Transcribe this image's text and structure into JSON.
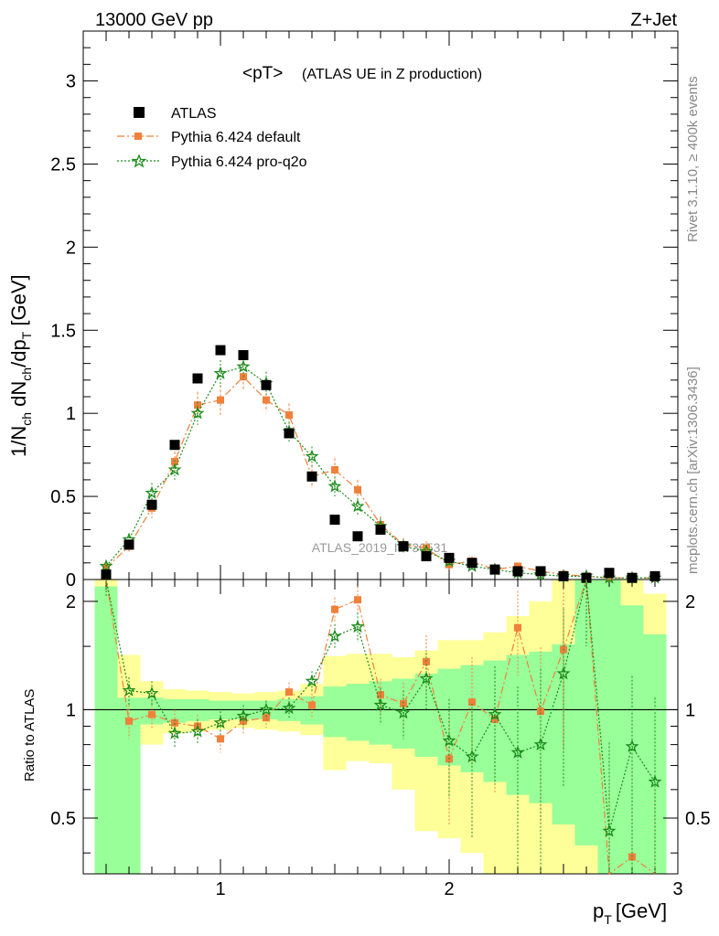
{
  "header": {
    "left": "13000 GeV pp",
    "right": "Z+Jet"
  },
  "side_labels": {
    "rivet": "Rivet 3.1.10, ≥ 400k events",
    "mcplots": "mcplots.cern.ch [arXiv:1306.3436]"
  },
  "title": {
    "main": "<pT>",
    "sub": "(ATLAS UE in Z production)"
  },
  "watermark": "ATLAS_2019_I1736531",
  "axes": {
    "main_ylabel": "1/N_ch dN_ch/dp_T [GeV]",
    "ratio_ylabel": "Ratio to ATLAS",
    "xlabel_main": "p",
    "xlabel_sub": "T",
    "xlabel_unit": "[GeV]"
  },
  "legend": [
    {
      "label": "ATLAS",
      "marker": "square",
      "color": "#000000"
    },
    {
      "label": "Pythia 6.424 default",
      "marker": "square",
      "color": "#f0803a"
    },
    {
      "label": "Pythia 6.424 pro-q2o",
      "marker": "star",
      "color": "#1a8a1a"
    }
  ],
  "chart_data": {
    "type": "scatter",
    "xlim": [
      0.4,
      3.0
    ],
    "ylim": [
      0,
      3.3
    ],
    "ratio_ylim": [
      0.35,
      2.3
    ],
    "x_ticks": [
      1,
      2,
      3
    ],
    "x_tick_labels": [
      "1",
      "2",
      "3"
    ],
    "y_ticks": [
      0,
      0.5,
      1,
      1.5,
      2,
      2.5,
      3
    ],
    "y_tick_labels": [
      "0",
      "0.5",
      "1",
      "1.5",
      "2",
      "2.5",
      "3"
    ],
    "ratio_ticks": [
      0.5,
      1,
      2
    ],
    "ratio_tick_labels": [
      "0.5",
      "1",
      "2"
    ],
    "colors": {
      "data": "#000000",
      "default": "#f0803a",
      "proq2o": "#1a8a1a",
      "band_inner": "#99ff99",
      "band_outer": "#ffff99"
    },
    "x": [
      0.5,
      0.6,
      0.7,
      0.8,
      0.9,
      1.0,
      1.1,
      1.2,
      1.3,
      1.4,
      1.5,
      1.6,
      1.7,
      1.8,
      1.9,
      2.0,
      2.1,
      2.2,
      2.3,
      2.4,
      2.5,
      2.6,
      2.7,
      2.8,
      2.9
    ],
    "series": [
      {
        "name": "ATLAS",
        "values": [
          0.03,
          0.21,
          0.45,
          0.81,
          1.21,
          1.38,
          1.35,
          1.17,
          0.88,
          0.62,
          0.36,
          0.26,
          0.3,
          0.2,
          0.14,
          0.13,
          0.1,
          0.06,
          0.05,
          0.05,
          0.02,
          0.01,
          0.04,
          0.01,
          0.02
        ]
      },
      {
        "name": "Pythia 6.424 default",
        "values": [
          0.07,
          0.2,
          0.43,
          0.71,
          1.05,
          1.08,
          1.22,
          1.08,
          0.99,
          0.62,
          0.66,
          0.54,
          0.33,
          0.21,
          0.19,
          0.09,
          0.11,
          0.06,
          0.08,
          0.05,
          0.03,
          0.02,
          0.01,
          0.01,
          0.01
        ],
        "errors": [
          0.03,
          0.04,
          0.06,
          0.06,
          0.08,
          0.09,
          0.08,
          0.07,
          0.07,
          0.07,
          0.07,
          0.06,
          0.05,
          0.04,
          0.04,
          0.03,
          0.03,
          0.02,
          0.02,
          0.02,
          0.02,
          0.02,
          0.01,
          0.01,
          0.01
        ]
      },
      {
        "name": "Pythia 6.424 pro-q2o",
        "values": [
          0.08,
          0.24,
          0.52,
          0.66,
          1.0,
          1.24,
          1.28,
          1.18,
          0.89,
          0.74,
          0.56,
          0.44,
          0.32,
          0.2,
          0.17,
          0.11,
          0.08,
          0.06,
          0.04,
          0.03,
          0.02,
          0.02,
          0.01,
          0.01,
          0.01
        ],
        "errors": [
          0.03,
          0.04,
          0.06,
          0.06,
          0.07,
          0.08,
          0.08,
          0.07,
          0.06,
          0.06,
          0.06,
          0.05,
          0.05,
          0.04,
          0.03,
          0.03,
          0.02,
          0.02,
          0.02,
          0.02,
          0.01,
          0.01,
          0.01,
          0.01,
          0.01
        ]
      }
    ],
    "ratio_default": {
      "values": [
        2.3,
        0.93,
        0.97,
        0.92,
        0.9,
        0.83,
        0.93,
        0.95,
        1.12,
        1.03,
        1.9,
        2.02,
        1.1,
        1.04,
        1.36,
        0.73,
        1.05,
        0.94,
        1.69,
        0.99,
        1.47,
        2.3,
        0.3,
        0.39,
        0.3
      ],
      "errors": [
        0.25,
        0.1,
        0.09,
        0.08,
        0.07,
        0.07,
        0.07,
        0.06,
        0.07,
        0.08,
        0.15,
        0.18,
        0.12,
        0.15,
        0.25,
        0.25,
        0.35,
        0.35,
        0.45,
        0.5,
        0.7,
        0.8,
        0.3,
        0.3,
        0.3
      ]
    },
    "ratio_proq2o": {
      "values": [
        2.3,
        1.13,
        1.11,
        0.86,
        0.87,
        0.92,
        0.96,
        1.0,
        1.01,
        1.2,
        1.6,
        1.7,
        1.03,
        0.98,
        1.22,
        0.82,
        0.74,
        0.97,
        0.76,
        0.8,
        1.26,
        2.3,
        0.46,
        0.79,
        0.63
      ],
      "errors": [
        0.25,
        0.1,
        0.09,
        0.08,
        0.07,
        0.07,
        0.07,
        0.06,
        0.07,
        0.08,
        0.13,
        0.16,
        0.12,
        0.15,
        0.22,
        0.25,
        0.3,
        0.35,
        0.4,
        0.5,
        0.65,
        0.8,
        0.35,
        0.45,
        0.45
      ]
    },
    "band_edges": [
      0.45,
      0.55,
      0.65,
      0.75,
      0.85,
      0.95,
      1.05,
      1.15,
      1.25,
      1.35,
      1.45,
      1.55,
      1.65,
      1.75,
      1.85,
      1.95,
      2.05,
      2.15,
      2.25,
      2.35,
      2.45,
      2.55,
      2.65,
      2.75,
      2.85,
      2.95
    ],
    "band_inner": [
      [
        0.35,
        2.2
      ],
      [
        0.35,
        1.08
      ],
      [
        0.91,
        1.08
      ],
      [
        0.92,
        1.07
      ],
      [
        0.93,
        1.07
      ],
      [
        0.94,
        1.06
      ],
      [
        0.94,
        1.06
      ],
      [
        0.94,
        1.06
      ],
      [
        0.93,
        1.07
      ],
      [
        0.91,
        1.09
      ],
      [
        0.84,
        1.16
      ],
      [
        0.82,
        1.18
      ],
      [
        0.8,
        1.2
      ],
      [
        0.78,
        1.22
      ],
      [
        0.74,
        1.26
      ],
      [
        0.7,
        1.3
      ],
      [
        0.67,
        1.33
      ],
      [
        0.63,
        1.37
      ],
      [
        0.58,
        1.42
      ],
      [
        0.55,
        1.45
      ],
      [
        0.48,
        1.52
      ],
      [
        0.42,
        2.3
      ],
      [
        0.35,
        2.3
      ],
      [
        0.35,
        1.95
      ],
      [
        0.35,
        1.62
      ]
    ],
    "band_outer": [
      [
        0.35,
        2.3
      ],
      [
        0.59,
        1.42
      ],
      [
        0.8,
        1.2
      ],
      [
        0.86,
        1.14
      ],
      [
        0.87,
        1.13
      ],
      [
        0.88,
        1.12
      ],
      [
        0.89,
        1.11
      ],
      [
        0.88,
        1.12
      ],
      [
        0.87,
        1.13
      ],
      [
        0.85,
        1.18
      ],
      [
        0.68,
        1.41
      ],
      [
        0.72,
        1.43
      ],
      [
        0.71,
        1.43
      ],
      [
        0.6,
        1.4
      ],
      [
        0.46,
        1.46
      ],
      [
        0.44,
        1.56
      ],
      [
        0.4,
        1.56
      ],
      [
        0.35,
        1.64
      ],
      [
        0.35,
        1.82
      ],
      [
        0.35,
        2.0
      ],
      [
        0.35,
        2.3
      ],
      [
        0.35,
        2.3
      ],
      [
        0.35,
        2.3
      ],
      [
        0.35,
        2.3
      ],
      [
        0.35,
        2.1
      ]
    ]
  }
}
